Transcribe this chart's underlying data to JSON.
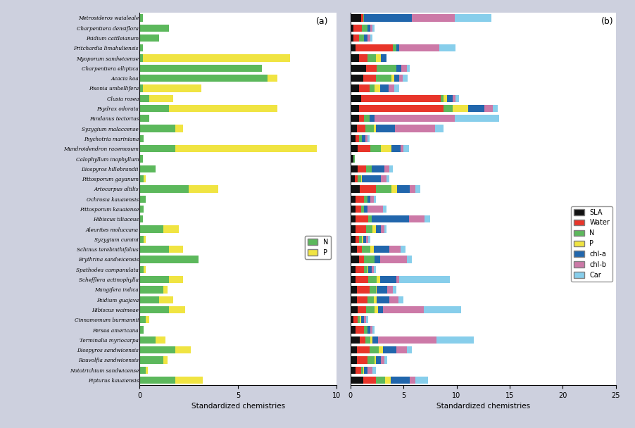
{
  "species": [
    "Metrosideros waialeale",
    "Charpentiera densiflora",
    "Psidium cattleianum",
    "Pritchardia limahuliensis",
    "Myoporum sandwicense",
    "Charpentiera elliptica",
    "Acacia koa",
    "Pisonia umbellifera",
    "Clusia rosea",
    "Psydrax odorata",
    "Pandanus tectorius",
    "Syzygium malaccense",
    "Psychotria mariniana",
    "Mundroidendron racemosum",
    "Calophyllum inophyllum",
    "Diospyros hillebrandii",
    "Pittosporum gayanum",
    "Artocarpus altilis",
    "Ochrosia kauaiensis",
    "Pittosporum kauaiense",
    "Hibiscus tiliaceus",
    "Aleurites moluccana",
    "Syzygium cumini",
    "Schinus terebinthifolius",
    "Erythrina sandwicensis",
    "Spathodea campanulata",
    "Schefflera actinophylla",
    "Mangifera indica",
    "Psidium guajava",
    "Hibiscus waimeae",
    "Cinnamomum burmannii",
    "Persea americana",
    "Terminalia myriocarpa",
    "Diospyros sandwicensis",
    "Rauvolfia sandwicensis",
    "Nototrichium sandwicense",
    "Pipturus kauaiensis"
  ],
  "N_a": [
    0.15,
    1.5,
    1.0,
    0.15,
    0.15,
    6.2,
    6.5,
    0.15,
    0.5,
    1.5,
    0.5,
    1.8,
    0.2,
    1.8,
    0.15,
    0.8,
    0.2,
    2.5,
    0.3,
    0.2,
    0.15,
    1.2,
    0.2,
    1.5,
    3.0,
    0.2,
    1.5,
    1.2,
    1.0,
    1.5,
    0.3,
    0.2,
    0.8,
    1.8,
    1.2,
    0.3,
    1.8
  ],
  "P_a": [
    0.0,
    0.0,
    0.0,
    0.0,
    7.5,
    0.0,
    0.5,
    3.0,
    1.2,
    5.5,
    0.0,
    0.4,
    0.0,
    7.2,
    0.0,
    0.0,
    0.1,
    1.5,
    0.0,
    0.0,
    0.0,
    0.8,
    0.1,
    0.7,
    0.0,
    0.1,
    0.7,
    0.2,
    0.7,
    0.8,
    0.2,
    0.0,
    0.5,
    0.8,
    0.2,
    0.1,
    1.4
  ],
  "b_SLA": [
    1.0,
    0.3,
    0.3,
    0.5,
    0.8,
    1.5,
    1.2,
    0.8,
    1.0,
    0.8,
    0.8,
    0.6,
    0.5,
    0.7,
    0.3,
    0.7,
    0.4,
    0.9,
    0.5,
    0.5,
    0.5,
    0.5,
    0.5,
    0.6,
    0.8,
    0.5,
    0.5,
    0.6,
    0.6,
    0.7,
    0.3,
    0.5,
    0.9,
    0.6,
    0.6,
    0.5,
    1.2
  ],
  "b_Water": [
    0.2,
    0.8,
    0.5,
    3.5,
    0.8,
    1.0,
    1.2,
    1.0,
    7.5,
    8.0,
    0.5,
    0.8,
    0.3,
    1.2,
    0.0,
    0.8,
    0.3,
    1.5,
    0.8,
    0.5,
    1.2,
    1.0,
    0.3,
    0.5,
    0.5,
    0.8,
    1.2,
    1.2,
    1.0,
    0.8,
    0.4,
    0.8,
    0.5,
    1.2,
    1.0,
    0.5,
    1.2
  ],
  "b_N": [
    0.1,
    0.5,
    0.5,
    0.3,
    0.8,
    1.8,
    1.5,
    0.5,
    0.3,
    0.8,
    0.5,
    0.8,
    0.3,
    1.0,
    0.1,
    0.5,
    0.3,
    1.5,
    0.3,
    0.3,
    0.3,
    0.6,
    0.3,
    0.8,
    1.0,
    0.3,
    0.8,
    0.6,
    0.6,
    0.8,
    0.2,
    0.3,
    0.5,
    0.9,
    0.7,
    0.2,
    0.9
  ],
  "b_P": [
    0.0,
    0.0,
    0.0,
    0.0,
    0.5,
    0.0,
    0.2,
    0.5,
    0.3,
    1.5,
    0.0,
    0.2,
    0.0,
    1.0,
    0.0,
    0.0,
    0.1,
    0.5,
    0.0,
    0.0,
    0.0,
    0.3,
    0.1,
    0.3,
    0.0,
    0.1,
    0.3,
    0.1,
    0.3,
    0.3,
    0.1,
    0.0,
    0.2,
    0.4,
    0.1,
    0.1,
    0.5
  ],
  "b_chla": [
    4.5,
    0.3,
    0.3,
    0.3,
    0.5,
    0.5,
    0.5,
    0.8,
    0.5,
    1.5,
    0.5,
    1.8,
    0.3,
    0.8,
    0.0,
    1.2,
    1.8,
    1.2,
    0.3,
    0.3,
    3.5,
    0.5,
    0.3,
    1.5,
    0.5,
    0.3,
    1.5,
    1.0,
    1.2,
    0.5,
    0.3,
    0.3,
    0.5,
    1.2,
    0.5,
    0.3,
    1.8
  ],
  "b_chlb": [
    4.0,
    0.2,
    0.3,
    3.8,
    0.0,
    0.5,
    0.3,
    0.5,
    0.3,
    0.8,
    7.5,
    3.8,
    0.2,
    0.3,
    0.0,
    0.5,
    0.5,
    0.5,
    0.3,
    1.5,
    1.5,
    0.3,
    0.2,
    1.0,
    2.5,
    0.2,
    0.3,
    0.5,
    0.8,
    3.8,
    0.2,
    0.2,
    5.5,
    1.0,
    0.3,
    0.5,
    0.5
  ],
  "b_Car": [
    3.5,
    0.2,
    0.2,
    1.5,
    0.0,
    0.3,
    0.5,
    0.5,
    0.3,
    0.5,
    4.2,
    0.8,
    0.2,
    0.5,
    0.0,
    0.3,
    0.3,
    0.5,
    0.2,
    0.3,
    0.5,
    0.2,
    0.2,
    0.5,
    0.5,
    0.2,
    4.8,
    0.3,
    0.5,
    3.5,
    0.2,
    0.2,
    3.5,
    0.5,
    0.3,
    0.3,
    1.2
  ],
  "colors": {
    "N": "#5cb85c",
    "P": "#f0e442",
    "SLA": "#111111",
    "Water": "#e8352a",
    "chla": "#2166ac",
    "chlb": "#cc79a7",
    "Car": "#87ceeb"
  },
  "bg_color": "#cdd0de",
  "panel_bg": "#ffffff",
  "border_color": "#888888"
}
